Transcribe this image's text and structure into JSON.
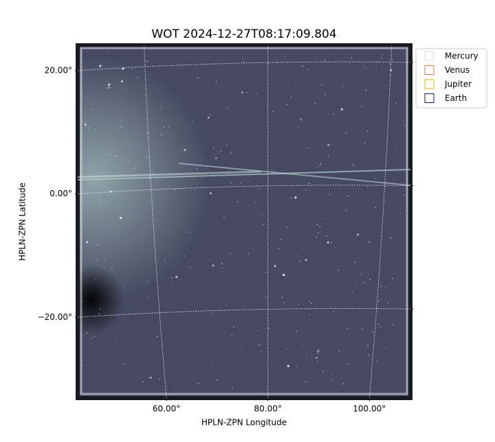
{
  "chart_data": {
    "type": "image",
    "title": "WOT 2024-12-27T08:17:09.804",
    "x_label": "HPLN-ZPN Longitude",
    "y_label": "HPLN-ZPN Latitude",
    "xlim": [
      42.5,
      108.1
    ],
    "ylim": [
      -33.1,
      24.1
    ],
    "xticks": [
      {
        "value": 60,
        "label": "60.00°"
      },
      {
        "value": 80,
        "label": "80.00°"
      },
      {
        "value": 100,
        "label": "100.00°"
      }
    ],
    "yticks": [
      {
        "value": -20,
        "label": "−20.00°"
      },
      {
        "value": 0,
        "label": "0.00°"
      },
      {
        "value": 20,
        "label": "20.00°"
      }
    ],
    "grid": true,
    "legend": [
      {
        "name": "Mercury",
        "color": "#d9d9d9"
      },
      {
        "name": "Venus",
        "color": "#e07b39"
      },
      {
        "name": "Jupiter",
        "color": "#e6b800"
      },
      {
        "name": "Earth",
        "color": "#1a1a7a"
      }
    ],
    "legend_position": "upper right"
  }
}
